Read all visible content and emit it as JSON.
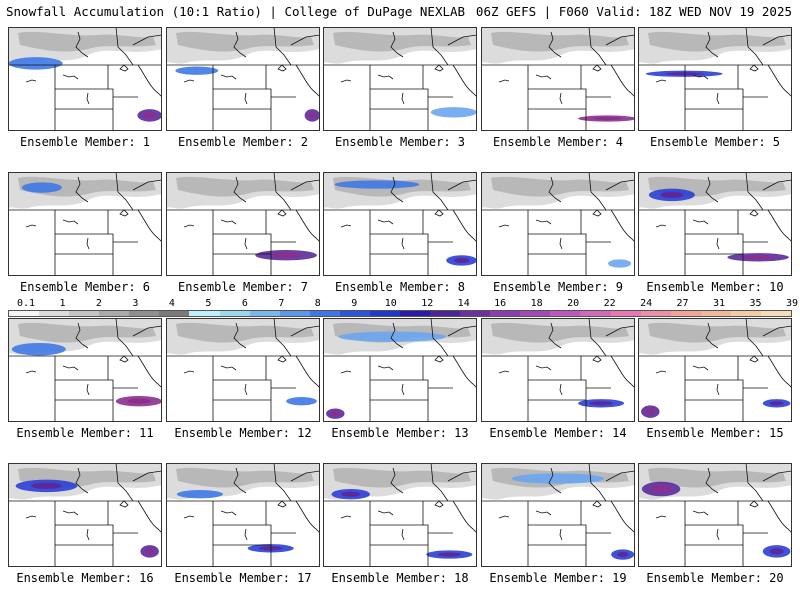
{
  "header": {
    "title_left": "Snowfall Accumulation (10:1 Ratio) | College of DuPage NEXLAB",
    "title_right": "06Z GEFS | F060 Valid: 18Z WED NOV 19 2025"
  },
  "colorbar": {
    "labels": [
      "0.1",
      "1",
      "2",
      "3",
      "4",
      "5",
      "6",
      "7",
      "8",
      "9",
      "10",
      "12",
      "14",
      "16",
      "18",
      "20",
      "22",
      "24",
      "27",
      "31",
      "35",
      "39"
    ],
    "colors": [
      "#f6f6f6",
      "#dcdcdc",
      "#c4c4c4",
      "#aaaaaa",
      "#8f8f8f",
      "#7a7a7a",
      "#bfefff",
      "#9ad8f0",
      "#78b8ef",
      "#5a98ec",
      "#3f78e6",
      "#2a55df",
      "#1f37cc",
      "#2a1ca8",
      "#4a2596",
      "#6c30a4",
      "#8b3db5",
      "#a548b8",
      "#c057bf",
      "#d668ba",
      "#e67ab0",
      "#ee8fa3",
      "#f1a497",
      "#f2b89a",
      "#f3cba5",
      "#f5ddbb"
    ]
  },
  "panels": [
    {
      "label": "Ensemble Member: 1",
      "hotspots": [
        {
          "c": 0.18,
          "cy": 0.35,
          "w": 0.35,
          "h": 0.12,
          "i": 2
        },
        {
          "c": 0.92,
          "cy": 0.85,
          "w": 0.16,
          "h": 0.12,
          "i": 4
        }
      ]
    },
    {
      "label": "Ensemble Member: 2",
      "hotspots": [
        {
          "c": 0.2,
          "cy": 0.42,
          "w": 0.28,
          "h": 0.08,
          "i": 2
        },
        {
          "c": 0.95,
          "cy": 0.85,
          "w": 0.1,
          "h": 0.12,
          "i": 4
        }
      ]
    },
    {
      "label": "Ensemble Member: 3",
      "hotspots": [
        {
          "c": 0.85,
          "cy": 0.82,
          "w": 0.3,
          "h": 0.1,
          "i": 1
        }
      ]
    },
    {
      "label": "Ensemble Member: 4",
      "hotspots": [
        {
          "c": 0.82,
          "cy": 0.88,
          "w": 0.38,
          "h": 0.06,
          "i": 5
        }
      ]
    },
    {
      "label": "Ensemble Member: 5",
      "hotspots": [
        {
          "c": 0.3,
          "cy": 0.45,
          "w": 0.5,
          "h": 0.06,
          "i": 3
        }
      ]
    },
    {
      "label": "Ensemble Member: 6",
      "hotspots": [
        {
          "c": 0.22,
          "cy": 0.15,
          "w": 0.26,
          "h": 0.1,
          "i": 2
        }
      ]
    },
    {
      "label": "Ensemble Member: 7",
      "hotspots": [
        {
          "c": 0.78,
          "cy": 0.8,
          "w": 0.4,
          "h": 0.1,
          "i": 4
        }
      ]
    },
    {
      "label": "Ensemble Member: 8",
      "hotspots": [
        {
          "c": 0.35,
          "cy": 0.12,
          "w": 0.55,
          "h": 0.08,
          "i": 2
        },
        {
          "c": 0.9,
          "cy": 0.85,
          "w": 0.2,
          "h": 0.1,
          "i": 3
        }
      ]
    },
    {
      "label": "Ensemble Member: 9",
      "hotspots": [
        {
          "c": 0.9,
          "cy": 0.88,
          "w": 0.15,
          "h": 0.08,
          "i": 1
        }
      ]
    },
    {
      "label": "Ensemble Member: 10",
      "hotspots": [
        {
          "c": 0.22,
          "cy": 0.22,
          "w": 0.3,
          "h": 0.12,
          "i": 3
        },
        {
          "c": 0.78,
          "cy": 0.82,
          "w": 0.4,
          "h": 0.08,
          "i": 4
        }
      ]
    },
    {
      "label": "Ensemble Member: 11",
      "hotspots": [
        {
          "c": 0.2,
          "cy": 0.3,
          "w": 0.35,
          "h": 0.12,
          "i": 2
        },
        {
          "c": 0.85,
          "cy": 0.8,
          "w": 0.3,
          "h": 0.1,
          "i": 5
        }
      ]
    },
    {
      "label": "Ensemble Member: 12",
      "hotspots": [
        {
          "c": 0.88,
          "cy": 0.8,
          "w": 0.2,
          "h": 0.08,
          "i": 2
        }
      ]
    },
    {
      "label": "Ensemble Member: 13",
      "hotspots": [
        {
          "c": 0.45,
          "cy": 0.18,
          "w": 0.7,
          "h": 0.1,
          "i": 1
        },
        {
          "c": 0.08,
          "cy": 0.92,
          "w": 0.12,
          "h": 0.1,
          "i": 4
        }
      ]
    },
    {
      "label": "Ensemble Member: 14",
      "hotspots": [
        {
          "c": 0.78,
          "cy": 0.82,
          "w": 0.3,
          "h": 0.08,
          "i": 3
        }
      ]
    },
    {
      "label": "Ensemble Member: 15",
      "hotspots": [
        {
          "c": 0.08,
          "cy": 0.9,
          "w": 0.12,
          "h": 0.12,
          "i": 4
        },
        {
          "c": 0.9,
          "cy": 0.82,
          "w": 0.18,
          "h": 0.08,
          "i": 3
        }
      ]
    },
    {
      "label": "Ensemble Member: 16",
      "hotspots": [
        {
          "c": 0.25,
          "cy": 0.22,
          "w": 0.4,
          "h": 0.12,
          "i": 3
        },
        {
          "c": 0.92,
          "cy": 0.85,
          "w": 0.12,
          "h": 0.12,
          "i": 4
        }
      ]
    },
    {
      "label": "Ensemble Member: 17",
      "hotspots": [
        {
          "c": 0.22,
          "cy": 0.3,
          "w": 0.3,
          "h": 0.08,
          "i": 2
        },
        {
          "c": 0.68,
          "cy": 0.82,
          "w": 0.3,
          "h": 0.08,
          "i": 3
        }
      ]
    },
    {
      "label": "Ensemble Member: 18",
      "hotspots": [
        {
          "c": 0.18,
          "cy": 0.3,
          "w": 0.25,
          "h": 0.1,
          "i": 3
        },
        {
          "c": 0.82,
          "cy": 0.88,
          "w": 0.3,
          "h": 0.08,
          "i": 3
        }
      ]
    },
    {
      "label": "Ensemble Member: 19",
      "hotspots": [
        {
          "c": 0.5,
          "cy": 0.15,
          "w": 0.6,
          "h": 0.1,
          "i": 1
        },
        {
          "c": 0.92,
          "cy": 0.88,
          "w": 0.15,
          "h": 0.1,
          "i": 3
        }
      ]
    },
    {
      "label": "Ensemble Member: 20",
      "hotspots": [
        {
          "c": 0.15,
          "cy": 0.25,
          "w": 0.25,
          "h": 0.14,
          "i": 4
        },
        {
          "c": 0.9,
          "cy": 0.85,
          "w": 0.18,
          "h": 0.12,
          "i": 3
        }
      ]
    }
  ]
}
